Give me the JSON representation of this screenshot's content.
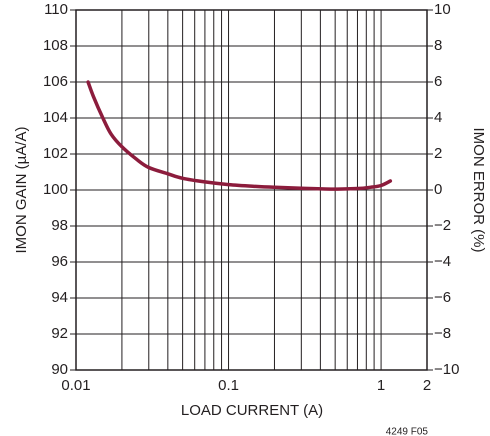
{
  "chart_data": {
    "type": "line",
    "xlabel": "LOAD CURRENT (A)",
    "ylabel": "IMON GAIN  (µA/A)",
    "y2label": "IMON ERROR  (%)",
    "annotation": "4249 F05",
    "x": [
      0.012,
      0.013,
      0.015,
      0.017,
      0.02,
      0.025,
      0.03,
      0.04,
      0.05,
      0.07,
      0.1,
      0.15,
      0.2,
      0.3,
      0.5,
      0.7,
      0.85,
      1,
      1.15
    ],
    "values": [
      106.0,
      105.2,
      104.0,
      103.1,
      102.4,
      101.7,
      101.25,
      100.9,
      100.65,
      100.45,
      100.3,
      100.2,
      100.15,
      100.1,
      100.05,
      100.08,
      100.15,
      100.25,
      100.5
    ],
    "color": "#8c1c3c",
    "xscale": "log",
    "xlim": [
      0.01,
      2
    ],
    "xticks": [
      0.01,
      0.1,
      1,
      2
    ],
    "xminor": [
      0.02,
      0.03,
      0.04,
      0.05,
      0.06,
      0.07,
      0.08,
      0.09,
      0.2,
      0.3,
      0.4,
      0.5,
      0.6,
      0.7,
      0.8,
      0.9
    ],
    "ylim": [
      90,
      110
    ],
    "yticks": [
      90,
      92,
      94,
      96,
      98,
      100,
      102,
      104,
      106,
      108,
      110
    ],
    "y2lim": [
      -10,
      10
    ],
    "y2ticks": [
      {
        "value": -10,
        "label": "−10"
      },
      {
        "value": -8,
        "label": "−8"
      },
      {
        "value": -6,
        "label": "−6"
      },
      {
        "value": -4,
        "label": "−4"
      },
      {
        "value": -2,
        "label": "−2"
      },
      0,
      2,
      4,
      6,
      8,
      10
    ],
    "grid": true
  }
}
